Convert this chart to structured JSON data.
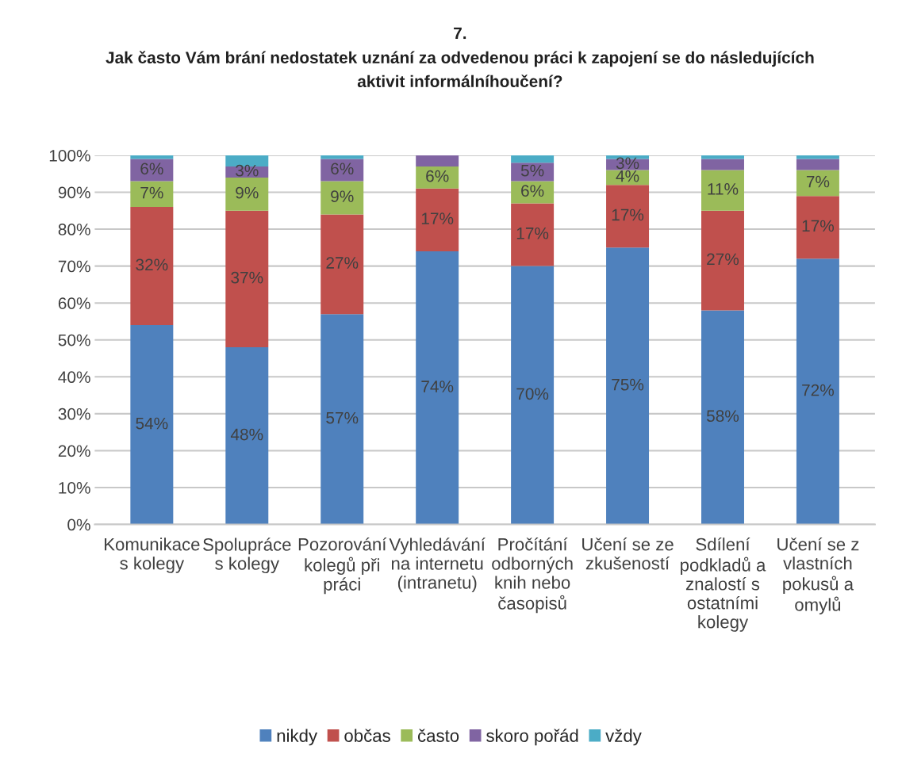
{
  "chart_data": {
    "type": "bar",
    "stacked": true,
    "title": "7.\nJak často Vám brání nedostatek uznání za odvedenou práci k zapojení se do následujících\naktivit informálníhoučení?",
    "categories": [
      "Komunikace\ns kolegy",
      "Spolupráce\ns kolegy",
      "Pozorování\nkolegů při\npráci",
      "Vyhledávání\nna internetu\n(intranetu)",
      "Pročítání\nodborných\nknih nebo\nčasopisů",
      "Učení se ze\nzkušeností",
      "Sdílení\npodkladů a\nznalostí s\nostatními\nkolegy",
      "Učení se z\nvlastních\npokusů a\nomylů"
    ],
    "series": [
      {
        "name": "nikdy",
        "color": "#4f81bd",
        "values": [
          54,
          48,
          57,
          74,
          70,
          75,
          58,
          72
        ],
        "value_labels": [
          "54%",
          "48%",
          "57%",
          "74%",
          "70%",
          "75%",
          "58%",
          "72%"
        ]
      },
      {
        "name": "občas",
        "color": "#c0504d",
        "values": [
          32,
          37,
          27,
          17,
          17,
          17,
          27,
          17
        ],
        "value_labels": [
          "32%",
          "37%",
          "27%",
          "17%",
          "17%",
          "17%",
          "27%",
          "17%"
        ]
      },
      {
        "name": "často",
        "color": "#9bbb59",
        "values": [
          7,
          9,
          9,
          6,
          6,
          4,
          11,
          7
        ],
        "value_labels": [
          "7%",
          "9%",
          "9%",
          "6%",
          "6%",
          "4%",
          "11%",
          "7%"
        ]
      },
      {
        "name": "skoro pořád",
        "color": "#8064a2",
        "values": [
          6,
          3,
          6,
          3,
          5,
          3,
          3,
          3
        ],
        "value_labels": [
          "6%",
          "3%",
          "6%",
          null,
          "5%",
          "3%",
          null,
          null
        ]
      },
      {
        "name": "vždy",
        "color": "#4bacc6",
        "values": [
          1,
          3,
          1,
          null,
          2,
          1,
          1,
          1
        ],
        "value_labels": [
          null,
          null,
          null,
          null,
          null,
          null,
          null,
          null
        ]
      }
    ],
    "ylim": [
      0,
      100
    ],
    "yticks": [
      {
        "value": 0,
        "label": "0%"
      },
      {
        "value": 10,
        "label": "10%"
      },
      {
        "value": 20,
        "label": "20%"
      },
      {
        "value": 30,
        "label": "30%"
      },
      {
        "value": 40,
        "label": "40%"
      },
      {
        "value": 50,
        "label": "50%"
      },
      {
        "value": 60,
        "label": "60%"
      },
      {
        "value": 70,
        "label": "70%"
      },
      {
        "value": 80,
        "label": "80%"
      },
      {
        "value": 90,
        "label": "90%"
      },
      {
        "value": 100,
        "label": "100%"
      }
    ],
    "grid": "y",
    "legend": "bottom"
  }
}
